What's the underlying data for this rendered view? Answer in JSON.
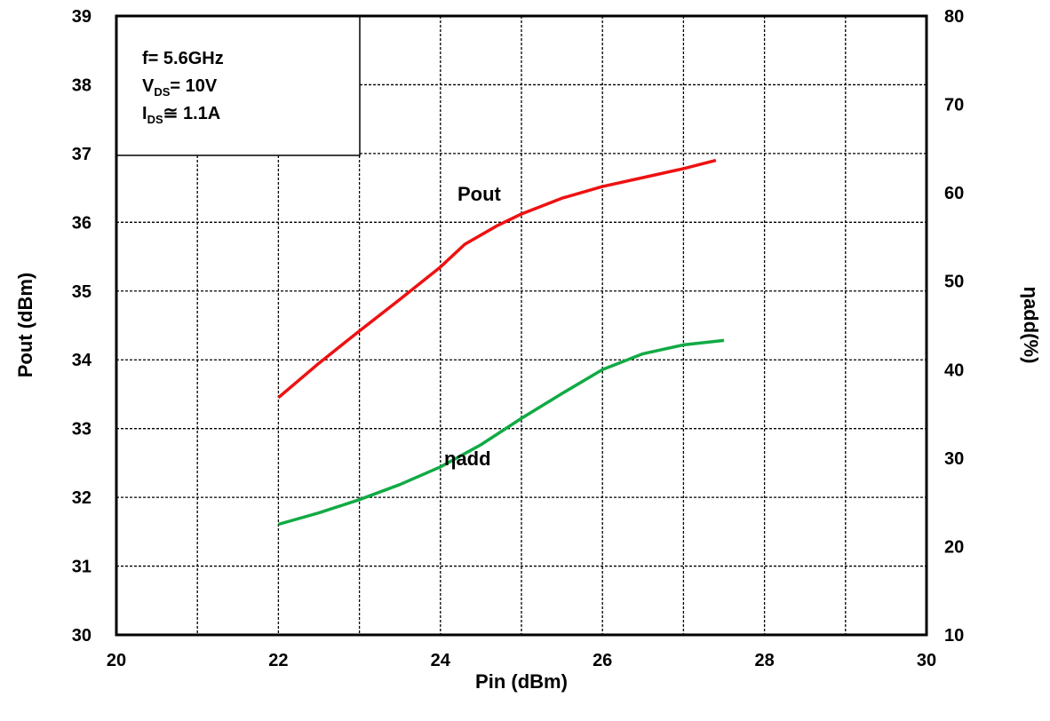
{
  "chart_data": {
    "type": "line",
    "xlabel": "Pin (dBm)",
    "ylabel": "Pout (dBm)",
    "y2label": "ηadd(%)",
    "xlim": [
      20,
      30
    ],
    "ylim": [
      30,
      39
    ],
    "y2lim": [
      10,
      80
    ],
    "xticks": [
      "20",
      "22",
      "24",
      "26",
      "28",
      "30"
    ],
    "yticks": [
      "30",
      "31",
      "32",
      "33",
      "34",
      "35",
      "36",
      "37",
      "38",
      "39"
    ],
    "y2ticks": [
      "10",
      "20",
      "30",
      "40",
      "50",
      "60",
      "70",
      "80"
    ],
    "grid": true,
    "conditions": {
      "line1": "f= 5.6GHz",
      "line2_main": "V",
      "line2_sub": "DS",
      "line2_rest": "= 10V",
      "line3_main": "I",
      "line3_sub": "DS",
      "line3_rest": "≅ 1.1A"
    },
    "series": [
      {
        "name": "Pout",
        "axis": "left",
        "color": "#ee1111",
        "x": [
          22.0,
          22.5,
          23.0,
          23.5,
          24.0,
          24.3,
          24.7,
          25.0,
          25.5,
          26.0,
          26.5,
          27.0,
          27.4
        ],
        "y": [
          33.45,
          33.95,
          34.42,
          34.88,
          35.35,
          35.68,
          35.95,
          36.12,
          36.35,
          36.52,
          36.65,
          36.78,
          36.9
        ]
      },
      {
        "name": "ηadd",
        "axis": "right",
        "color": "#11aa44",
        "x": [
          22.0,
          22.5,
          23.0,
          23.5,
          24.0,
          24.5,
          25.0,
          25.5,
          26.0,
          26.5,
          27.0,
          27.5
        ],
        "y": [
          22.5,
          23.8,
          25.3,
          27.0,
          29.0,
          31.5,
          34.5,
          37.3,
          40.0,
          41.8,
          42.8,
          43.3
        ]
      }
    ],
    "series_labels": {
      "pout": "Pout",
      "eta": "ηadd"
    }
  }
}
